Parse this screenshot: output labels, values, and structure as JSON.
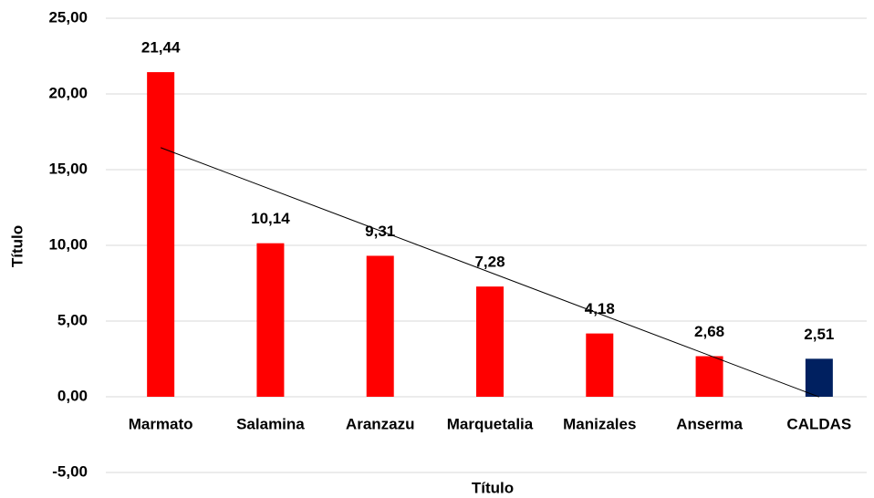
{
  "chart_data": {
    "type": "bar",
    "x_label": "Título",
    "y_label": "Título",
    "categories": [
      "Marmato",
      "Salamina",
      "Aranzazu",
      "Marquetalia",
      "Manizales",
      "Anserma",
      "CALDAS"
    ],
    "values": [
      21.44,
      10.14,
      9.31,
      7.28,
      4.18,
      2.68,
      2.51
    ],
    "value_labels": [
      "21,44",
      "10,14",
      "9,31",
      "7,28",
      "4,18",
      "2,68",
      "2,51"
    ],
    "colors": [
      "#ff0000",
      "#ff0000",
      "#ff0000",
      "#ff0000",
      "#ff0000",
      "#ff0000",
      "#002060"
    ],
    "ylim": [
      -5,
      25
    ],
    "yticks": [
      {
        "value": -5,
        "label": "-5,00"
      },
      {
        "value": 0,
        "label": "0,00"
      },
      {
        "value": 5,
        "label": "5,00"
      },
      {
        "value": 10,
        "label": "10,00"
      },
      {
        "value": 15,
        "label": "15,00"
      },
      {
        "value": 20,
        "label": "20,00"
      },
      {
        "value": 25,
        "label": "25,00"
      }
    ],
    "grid": true,
    "trendline": "linear"
  }
}
